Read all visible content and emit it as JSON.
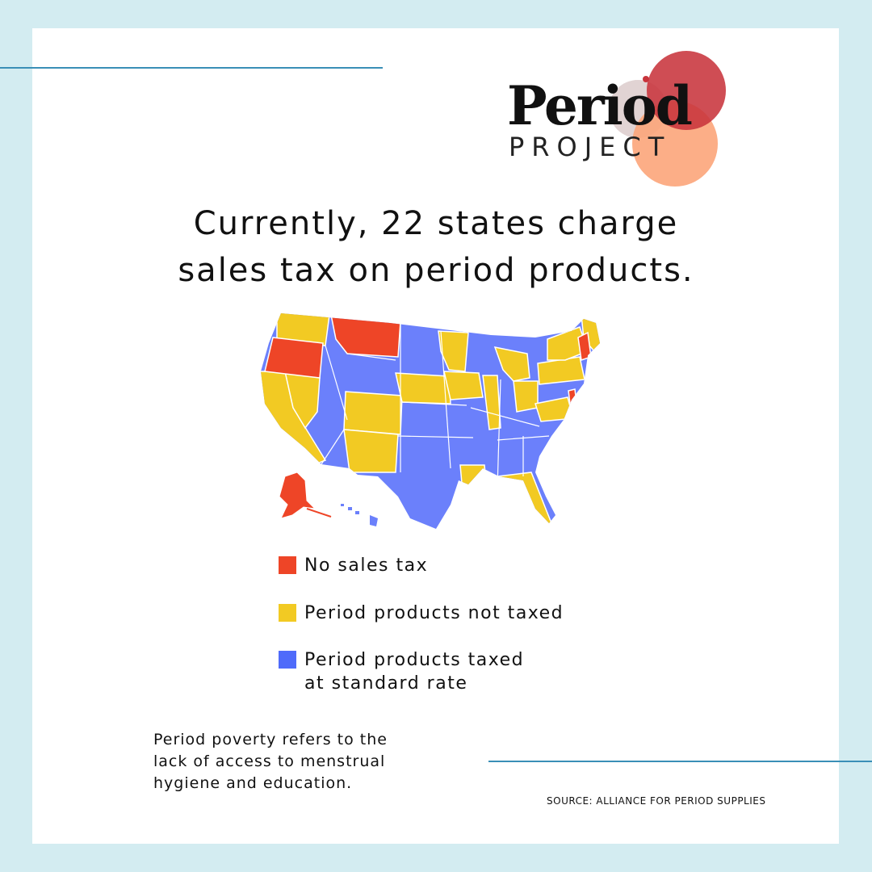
{
  "logo": {
    "word": "Period",
    "sub": "PROJECT"
  },
  "headline": {
    "line1": "Currently, 22 states charge",
    "line2": "sales tax on period products."
  },
  "colors": {
    "background": "#d3ecf1",
    "accent_line": "#3a8fb7",
    "no_tax": "#ee4527",
    "not_taxed": "#f2ca23",
    "taxed": "#6b80fb",
    "logo_red": "#c8343c",
    "logo_peach": "#fca57a",
    "logo_mauve": "#dccbcb"
  },
  "map": {
    "no_sales_tax_states": [
      "Oregon",
      "Montana",
      "Alaska",
      "New Hampshire",
      "Delaware"
    ]
  },
  "legend": {
    "no_tax": "No sales tax",
    "not_taxed": "Period products not taxed",
    "taxed_line1": "Period products taxed",
    "taxed_line2": "at standard rate"
  },
  "footnote": {
    "line1": "Period poverty refers to the",
    "line2": "lack of access to menstrual",
    "line3": "hygiene and education."
  },
  "source": "SOURCE: ALLIANCE FOR PERIOD SUPPLIES"
}
